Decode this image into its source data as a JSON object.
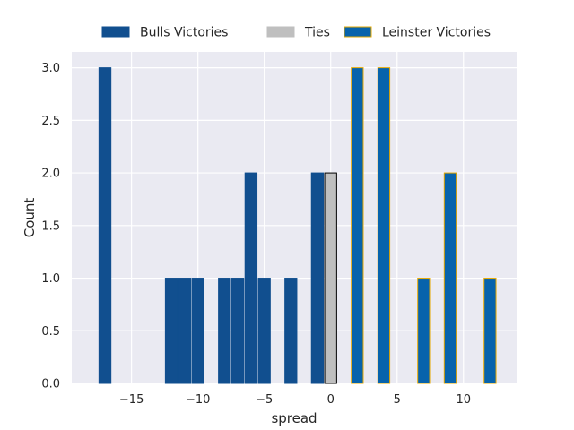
{
  "chart_data": {
    "type": "bar",
    "xlabel": "spread",
    "ylabel": "Count",
    "xlim": [
      -19.5,
      14
    ],
    "ylim": [
      0,
      3.15
    ],
    "x_ticks": [
      -15,
      -10,
      -5,
      0,
      5,
      10
    ],
    "x_tick_labels": [
      "−15",
      "−10",
      "−5",
      "0",
      "5",
      "10"
    ],
    "y_ticks": [
      0,
      0.5,
      1.0,
      1.5,
      2.0,
      2.5,
      3.0
    ],
    "y_tick_labels": [
      "0.0",
      "0.5",
      "1.0",
      "1.5",
      "2.0",
      "2.5",
      "3.0"
    ],
    "grid": true,
    "legend_position": "top",
    "bar_width": 0.9,
    "series": [
      {
        "name": "Bulls Victories",
        "color": "#114f8f",
        "edge_color": "#114f8f",
        "bars": [
          {
            "x": -17,
            "value": 3
          },
          {
            "x": -12,
            "value": 1
          },
          {
            "x": -11,
            "value": 1
          },
          {
            "x": -10,
            "value": 1
          },
          {
            "x": -8,
            "value": 1
          },
          {
            "x": -7,
            "value": 1
          },
          {
            "x": -6,
            "value": 2
          },
          {
            "x": -5,
            "value": 1
          },
          {
            "x": -3,
            "value": 1
          },
          {
            "x": -1,
            "value": 2
          }
        ]
      },
      {
        "name": "Ties",
        "color": "#bfbfbf",
        "edge_color": "#000000",
        "bars": [
          {
            "x": 0,
            "value": 2
          }
        ]
      },
      {
        "name": "Leinster Victories",
        "color": "#0763ac",
        "edge_color": "#e6a800",
        "bars": [
          {
            "x": 2,
            "value": 3
          },
          {
            "x": 4,
            "value": 3
          },
          {
            "x": 7,
            "value": 1
          },
          {
            "x": 9,
            "value": 2
          },
          {
            "x": 12,
            "value": 1
          }
        ]
      }
    ]
  }
}
